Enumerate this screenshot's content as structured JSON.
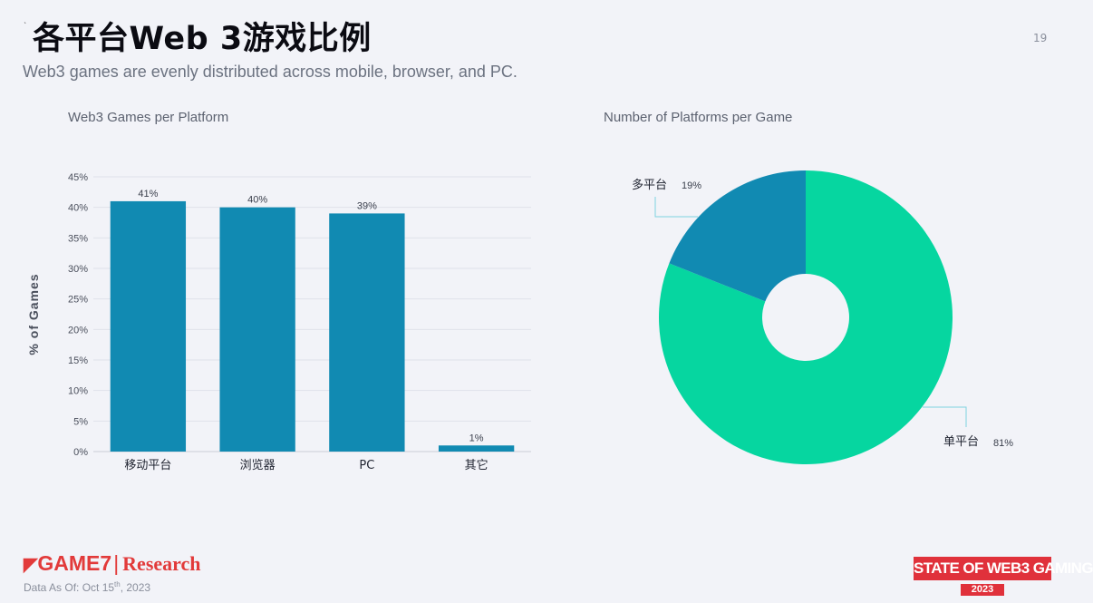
{
  "page": {
    "title": "各平台Web 3游戏比例",
    "tick": "`",
    "page_number": "19",
    "subtitle": "Web3 games are evenly distributed across mobile, browser, and PC."
  },
  "footer": {
    "logo_main": "GAME7",
    "logo_sep": "|",
    "logo_research": "Research",
    "as_of_prefix": "Data As Of: Oct 15",
    "as_of_sup": "th",
    "as_of_suffix": ", 2023",
    "badge_top": "STATE OF WEB3 GAMING",
    "badge_year": "2023"
  },
  "colors": {
    "bar": "#118ab2",
    "pie_multi": "#118ab2",
    "pie_single": "#06d6a0",
    "grid": "#dfe2ea"
  },
  "chart_data": [
    {
      "type": "bar",
      "title": "Web3 Games per Platform",
      "ylabel": "% of Games",
      "xlabel": "",
      "categories": [
        "移动平台",
        "浏览器",
        "PC",
        "其它"
      ],
      "values": [
        41,
        40,
        39,
        1
      ],
      "value_labels": [
        "41%",
        "40%",
        "39%",
        "1%"
      ],
      "yticks": [
        "0%",
        "5%",
        "10%",
        "15%",
        "20%",
        "25%",
        "30%",
        "35%",
        "40%",
        "45%"
      ],
      "ylim": [
        0,
        45
      ],
      "grid": true
    },
    {
      "type": "pie",
      "title": "Number of Platforms per Game",
      "donut": true,
      "labels": [
        "多平台",
        "单平台"
      ],
      "values": [
        19,
        81
      ],
      "value_labels": [
        "19%",
        "81%"
      ],
      "legend": "none"
    }
  ]
}
